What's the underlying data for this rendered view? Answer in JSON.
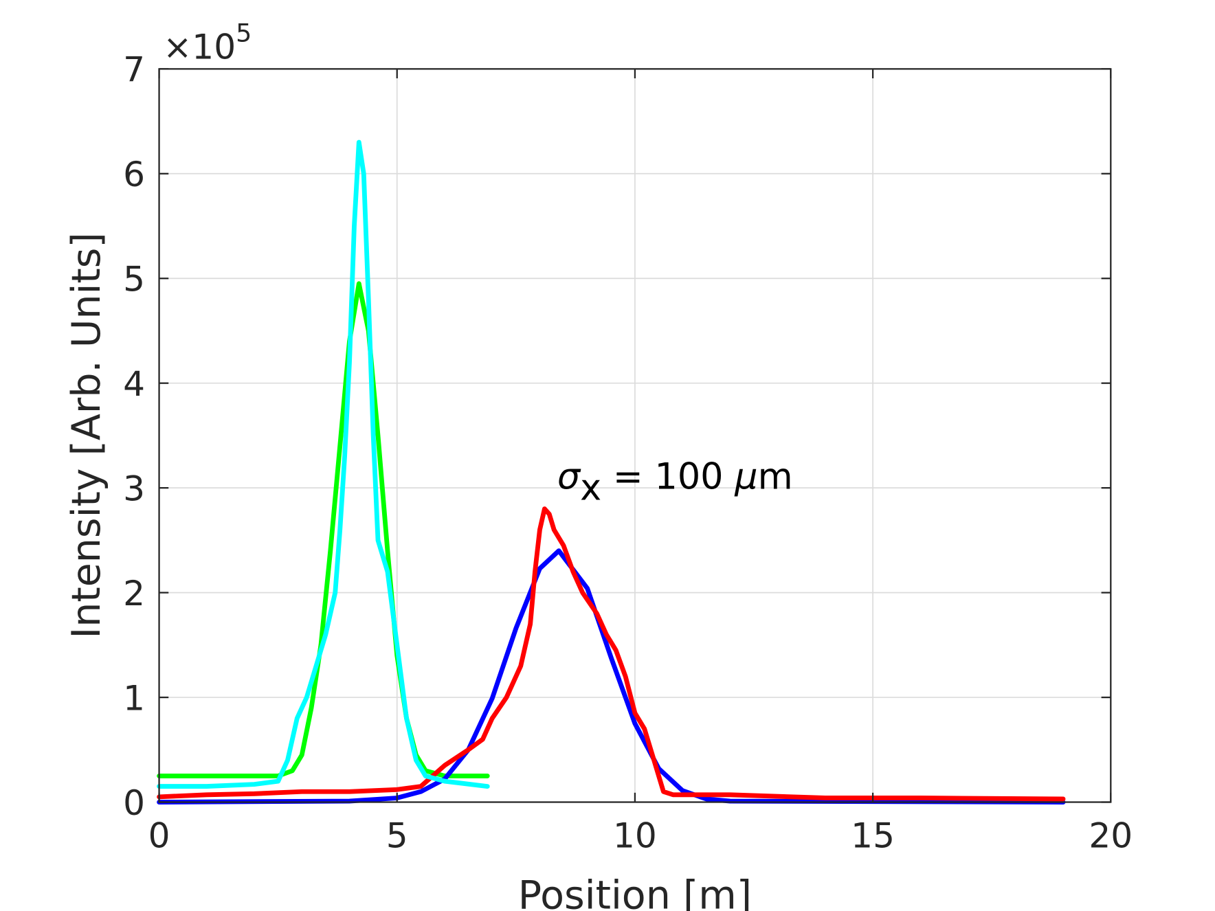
{
  "chart_data": {
    "type": "line",
    "title": "",
    "xlabel": "Position [m]",
    "ylabel": "Intensity [Arb. Units]",
    "y_multiplier": "×10",
    "y_multiplier_exponent": "5",
    "xlim": [
      0,
      20
    ],
    "ylim": [
      0,
      7
    ],
    "y_scale_factor": 100000,
    "xticks": [
      "0",
      "5",
      "10",
      "15",
      "20"
    ],
    "yticks": [
      "0",
      "1",
      "2",
      "3",
      "4",
      "5",
      "6",
      "7"
    ],
    "grid": true,
    "annotation": {
      "symbol": "σ",
      "subscript": "x",
      "text": " = 100 ",
      "mu": "μ",
      "unit": "m",
      "x": 8.4,
      "y": 3.05
    },
    "series": [
      {
        "color": "#00ff00",
        "points": [
          [
            0,
            0.25
          ],
          [
            2.5,
            0.25
          ],
          [
            2.8,
            0.3
          ],
          [
            3.0,
            0.45
          ],
          [
            3.2,
            0.9
          ],
          [
            3.4,
            1.5
          ],
          [
            3.6,
            2.4
          ],
          [
            3.8,
            3.4
          ],
          [
            4.0,
            4.4
          ],
          [
            4.2,
            4.95
          ],
          [
            4.4,
            4.5
          ],
          [
            4.6,
            3.5
          ],
          [
            4.8,
            2.4
          ],
          [
            5.0,
            1.4
          ],
          [
            5.2,
            0.8
          ],
          [
            5.4,
            0.45
          ],
          [
            5.6,
            0.3
          ],
          [
            6.0,
            0.25
          ],
          [
            6.9,
            0.25
          ]
        ]
      },
      {
        "color": "#0000ff",
        "points": [
          [
            0,
            0
          ],
          [
            4,
            0.01
          ],
          [
            5,
            0.04
          ],
          [
            5.5,
            0.1
          ],
          [
            6,
            0.22
          ],
          [
            6.5,
            0.5
          ],
          [
            7,
            0.99
          ],
          [
            7.5,
            1.66
          ],
          [
            8,
            2.23
          ],
          [
            8.4,
            2.4
          ],
          [
            9,
            2.04
          ],
          [
            9.5,
            1.38
          ],
          [
            10,
            0.75
          ],
          [
            10.5,
            0.32
          ],
          [
            11,
            0.11
          ],
          [
            11.5,
            0.03
          ],
          [
            12,
            0.01
          ],
          [
            19,
            0.0
          ]
        ]
      },
      {
        "color": "#ff0000",
        "points": [
          [
            0,
            0.05
          ],
          [
            1,
            0.07
          ],
          [
            2,
            0.08
          ],
          [
            3,
            0.1
          ],
          [
            4,
            0.1
          ],
          [
            5,
            0.12
          ],
          [
            5.5,
            0.15
          ],
          [
            6,
            0.35
          ],
          [
            6.5,
            0.5
          ],
          [
            6.8,
            0.6
          ],
          [
            7,
            0.8
          ],
          [
            7.3,
            1.0
          ],
          [
            7.6,
            1.3
          ],
          [
            7.8,
            1.7
          ],
          [
            7.9,
            2.2
          ],
          [
            8.0,
            2.6
          ],
          [
            8.1,
            2.8
          ],
          [
            8.2,
            2.75
          ],
          [
            8.3,
            2.6
          ],
          [
            8.5,
            2.45
          ],
          [
            8.7,
            2.2
          ],
          [
            8.9,
            2.0
          ],
          [
            9.2,
            1.8
          ],
          [
            9.4,
            1.6
          ],
          [
            9.6,
            1.45
          ],
          [
            9.8,
            1.2
          ],
          [
            10.0,
            0.85
          ],
          [
            10.2,
            0.7
          ],
          [
            10.4,
            0.4
          ],
          [
            10.6,
            0.1
          ],
          [
            10.8,
            0.07
          ],
          [
            12,
            0.07
          ],
          [
            14,
            0.04
          ],
          [
            16,
            0.04
          ],
          [
            19,
            0.03
          ]
        ]
      },
      {
        "color": "#00ffff",
        "points": [
          [
            0,
            0.15
          ],
          [
            1,
            0.15
          ],
          [
            2,
            0.17
          ],
          [
            2.5,
            0.2
          ],
          [
            2.7,
            0.4
          ],
          [
            2.9,
            0.8
          ],
          [
            3.1,
            1.0
          ],
          [
            3.3,
            1.3
          ],
          [
            3.5,
            1.6
          ],
          [
            3.7,
            2.0
          ],
          [
            3.8,
            2.6
          ],
          [
            3.9,
            3.3
          ],
          [
            4.0,
            4.2
          ],
          [
            4.1,
            5.5
          ],
          [
            4.2,
            6.3
          ],
          [
            4.3,
            6.0
          ],
          [
            4.4,
            4.8
          ],
          [
            4.5,
            3.5
          ],
          [
            4.6,
            2.5
          ],
          [
            4.8,
            2.2
          ],
          [
            5.0,
            1.5
          ],
          [
            5.2,
            0.8
          ],
          [
            5.4,
            0.4
          ],
          [
            5.6,
            0.25
          ],
          [
            6.0,
            0.2
          ],
          [
            6.9,
            0.15
          ]
        ]
      }
    ]
  }
}
